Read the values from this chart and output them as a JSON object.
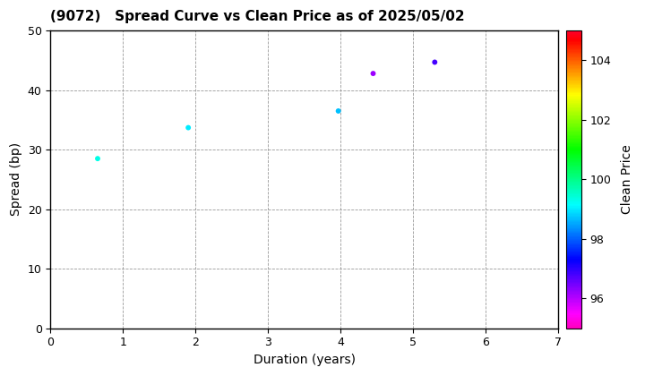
{
  "title": "(9072)   Spread Curve vs Clean Price as of 2025/05/02",
  "xlabel": "Duration (years)",
  "ylabel": "Spread (bp)",
  "colorbar_label": "Clean Price",
  "xlim": [
    0,
    7
  ],
  "ylim": [
    0,
    50
  ],
  "xticks": [
    0,
    1,
    2,
    3,
    4,
    5,
    6,
    7
  ],
  "yticks": [
    0,
    10,
    20,
    30,
    40,
    50
  ],
  "colorbar_ticks": [
    96,
    98,
    100,
    102,
    104
  ],
  "colorbar_vmin": 95.0,
  "colorbar_vmax": 105.0,
  "points": [
    {
      "duration": 0.65,
      "spread": 28.5,
      "clean_price": 99.3
    },
    {
      "duration": 1.9,
      "spread": 33.7,
      "clean_price": 99.0
    },
    {
      "duration": 3.97,
      "spread": 36.5,
      "clean_price": 98.7
    },
    {
      "duration": 4.45,
      "spread": 42.8,
      "clean_price": 96.2
    },
    {
      "duration": 5.3,
      "spread": 44.7,
      "clean_price": 96.8
    }
  ],
  "marker_size": 18,
  "background_color": "#ffffff",
  "grid_color": "#999999",
  "grid_linestyle": "--",
  "grid_linewidth": 0.6,
  "title_fontsize": 11,
  "axis_label_fontsize": 10,
  "tick_fontsize": 9,
  "colorbar_fontsize": 10,
  "figwidth": 7.2,
  "figheight": 4.2
}
